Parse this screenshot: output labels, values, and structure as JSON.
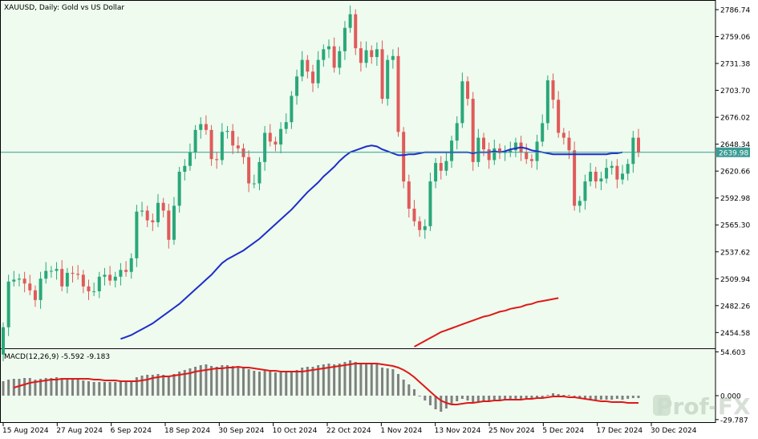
{
  "header": {
    "main_title": "XAUUSD, Daily:  Gold vs US Dollar",
    "macd_label": "MACD(12,26,9) -5.592 -9.183"
  },
  "watermark": {
    "text": "Prof-FX"
  },
  "colors": {
    "background": "#eefbee",
    "bull": "#2aa77a",
    "bear": "#e05a5a",
    "ma_fast": "#1f2dcc",
    "ma_slow": "#e01818",
    "price_line": "#3a9c94",
    "macd_hist": "#808080",
    "macd_signal": "#e01818"
  },
  "chart_data": [
    {
      "type": "candlestick",
      "title": "XAUUSD, Daily:  Gold vs US Dollar",
      "ylim": [
        2440,
        2795
      ],
      "y_ticks": [
        "2786.74",
        "2759.06",
        "2731.38",
        "2703.70",
        "2676.02",
        "2648.34",
        "2620.66",
        "2592.98",
        "2565.30",
        "2537.62",
        "2509.94",
        "2482.26",
        "2454.58"
      ],
      "x_tick_labels": [
        "15 Aug 2024",
        "27 Aug 2024",
        "6 Sep 2024",
        "18 Sep 2024",
        "30 Sep 2024",
        "10 Oct 2024",
        "22 Oct 2024",
        "1 Nov 2024",
        "13 Nov 2024",
        "25 Nov 2024",
        "5 Dec 2024",
        "17 Dec 2024",
        "30 Dec 2024"
      ],
      "current_price": "2639.98",
      "close": [
        2460,
        2507,
        2509,
        2510,
        2505,
        2498,
        2488,
        2510,
        2518,
        2518,
        2520,
        2502,
        2516,
        2515,
        2514,
        2502,
        2497,
        2497,
        2512,
        2514,
        2508,
        2512,
        2519,
        2517,
        2531,
        2579,
        2580,
        2570,
        2568,
        2588,
        2580,
        2550,
        2585,
        2620,
        2626,
        2640,
        2663,
        2669,
        2663,
        2633,
        2632,
        2661,
        2662,
        2647,
        2644,
        2635,
        2608,
        2608,
        2630,
        2660,
        2651,
        2648,
        2664,
        2671,
        2698,
        2718,
        2735,
        2723,
        2711,
        2735,
        2746,
        2749,
        2727,
        2744,
        2768,
        2782,
        2747,
        2732,
        2745,
        2738,
        2746,
        2695,
        2735,
        2739,
        2661,
        2610,
        2582,
        2569,
        2560,
        2564,
        2610,
        2629,
        2621,
        2631,
        2652,
        2670,
        2713,
        2695,
        2630,
        2655,
        2643,
        2632,
        2644,
        2640,
        2640,
        2642,
        2650,
        2640,
        2633,
        2631,
        2651,
        2670,
        2714,
        2694,
        2660,
        2655,
        2642,
        2585,
        2590,
        2610,
        2620,
        2610,
        2613,
        2624,
        2626,
        2612,
        2618,
        2628,
        2655,
        2640
      ],
      "open": [
        2432,
        2460,
        2507,
        2509,
        2510,
        2505,
        2498,
        2488,
        2510,
        2518,
        2518,
        2520,
        2502,
        2516,
        2515,
        2514,
        2502,
        2497,
        2497,
        2512,
        2514,
        2508,
        2512,
        2519,
        2517,
        2531,
        2579,
        2580,
        2570,
        2568,
        2588,
        2580,
        2550,
        2585,
        2620,
        2626,
        2640,
        2663,
        2669,
        2663,
        2633,
        2632,
        2661,
        2662,
        2647,
        2644,
        2635,
        2608,
        2608,
        2630,
        2660,
        2651,
        2648,
        2664,
        2671,
        2698,
        2718,
        2735,
        2723,
        2711,
        2735,
        2746,
        2749,
        2727,
        2744,
        2768,
        2782,
        2747,
        2732,
        2745,
        2738,
        2746,
        2695,
        2735,
        2739,
        2661,
        2610,
        2582,
        2569,
        2560,
        2564,
        2610,
        2629,
        2621,
        2631,
        2652,
        2670,
        2713,
        2695,
        2630,
        2655,
        2643,
        2632,
        2644,
        2640,
        2640,
        2642,
        2650,
        2640,
        2633,
        2631,
        2651,
        2670,
        2714,
        2694,
        2660,
        2655,
        2642,
        2585,
        2590,
        2610,
        2620,
        2610,
        2613,
        2624,
        2626,
        2612,
        2618,
        2628,
        2655
      ],
      "series": [
        {
          "name": "",
          "color": "#1f2dcc",
          "values": [
            null,
            null,
            null,
            null,
            null,
            null,
            null,
            null,
            null,
            null,
            null,
            null,
            null,
            null,
            null,
            null,
            null,
            null,
            null,
            null,
            null,
            null,
            2448,
            2450,
            2452,
            2455,
            2458,
            2461,
            2464,
            2468,
            2472,
            2476,
            2480,
            2484,
            2489,
            2494,
            2499,
            2504,
            2509,
            2514,
            2520,
            2526,
            2530,
            2533,
            2536,
            2539,
            2543,
            2547,
            2551,
            2556,
            2561,
            2566,
            2571,
            2576,
            2581,
            2587,
            2593,
            2599,
            2604,
            2609,
            2615,
            2620,
            2625,
            2631,
            2636,
            2640,
            2642,
            2644,
            2646,
            2647,
            2646,
            2643,
            2641,
            2639,
            2637,
            2637,
            2638,
            2638,
            2639,
            2640,
            2640,
            2640,
            2640,
            2640,
            2640,
            2640,
            2640,
            2640,
            2639,
            2640,
            2640,
            2640,
            2641,
            2640,
            2641,
            2643,
            2644,
            2645,
            2644,
            2642,
            2641,
            2640,
            2639,
            2638,
            2638,
            2638,
            2638,
            2638,
            2638,
            2638,
            2638,
            2638,
            2638,
            2638,
            2639,
            2639,
            2640
          ]
        },
        {
          "name": "",
          "color": "#e01818",
          "values": [
            null,
            null,
            null,
            null,
            null,
            null,
            null,
            null,
            null,
            null,
            null,
            null,
            null,
            null,
            null,
            null,
            null,
            null,
            null,
            null,
            null,
            null,
            null,
            null,
            null,
            null,
            null,
            null,
            null,
            null,
            null,
            null,
            null,
            null,
            null,
            null,
            null,
            null,
            null,
            null,
            null,
            null,
            null,
            null,
            null,
            null,
            null,
            null,
            null,
            null,
            null,
            null,
            null,
            null,
            null,
            null,
            null,
            null,
            null,
            null,
            null,
            null,
            null,
            null,
            null,
            null,
            null,
            null,
            null,
            null,
            null,
            null,
            null,
            null,
            null,
            null,
            null,
            2440,
            2443,
            2446,
            2449,
            2452,
            2455,
            2457,
            2459,
            2461,
            2463,
            2465,
            2467,
            2469,
            2471,
            2472,
            2474,
            2476,
            2477,
            2479,
            2480,
            2481,
            2483,
            2484,
            2486,
            2487,
            2488,
            2489,
            2490
          ]
        }
      ]
    },
    {
      "type": "bar",
      "title": "MACD(12,26,9) -5.592 -9.183",
      "ylim": [
        -32,
        56
      ],
      "y_ticks": [
        "54.603",
        "0.000",
        "-29.787"
      ],
      "values": [
        18,
        20,
        21,
        21,
        22,
        22,
        20,
        21,
        22,
        22,
        23,
        22,
        22,
        21,
        20,
        19,
        18,
        17,
        17,
        17,
        17,
        17,
        18,
        17,
        18,
        23,
        25,
        26,
        26,
        27,
        26,
        24,
        27,
        30,
        32,
        34,
        36,
        38,
        39,
        37,
        36,
        38,
        38,
        37,
        36,
        35,
        33,
        31,
        30,
        31,
        30,
        29,
        29,
        29,
        30,
        32,
        35,
        36,
        36,
        38,
        39,
        40,
        39,
        40,
        42,
        44,
        42,
        41,
        40,
        39,
        39,
        35,
        34,
        33,
        27,
        20,
        14,
        8,
        0,
        -6,
        -12,
        -17,
        -20,
        -16,
        -11,
        -7,
        -4,
        -6,
        -9,
        -8,
        -7,
        -6,
        -5,
        -6,
        -5,
        -5,
        -5,
        -4,
        -5,
        -4,
        -3,
        -2,
        1,
        3,
        2,
        1,
        1,
        -1,
        -3,
        -4,
        -5,
        -5,
        -5,
        -5,
        -5,
        -4,
        -5,
        -4,
        -3,
        -3
      ],
      "series": [
        {
          "name": "",
          "color": "#e01818",
          "values": [
            null,
            null,
            10,
            12,
            14,
            16,
            17,
            18,
            19,
            20,
            20,
            21,
            21,
            21,
            21,
            21,
            21,
            20,
            20,
            19,
            19,
            19,
            18,
            18,
            18,
            18,
            19,
            20,
            22,
            23,
            24,
            24,
            25,
            26,
            27,
            28,
            30,
            31,
            32,
            33,
            34,
            34,
            35,
            35,
            36,
            35,
            35,
            34,
            33,
            32,
            31,
            31,
            30,
            30,
            30,
            30,
            30,
            31,
            32,
            33,
            34,
            35,
            36,
            37,
            38,
            39,
            40,
            40,
            40,
            40,
            40,
            39,
            38,
            37,
            35,
            32,
            28,
            23,
            17,
            11,
            5,
            -1,
            -6,
            -9,
            -11,
            -11,
            -10,
            -9,
            -9,
            -8,
            -7,
            -7,
            -6,
            -6,
            -5,
            -5,
            -5,
            -5,
            -4,
            -4,
            -3,
            -3,
            -2,
            -1,
            -1,
            -1,
            -2,
            -2,
            -3,
            -4,
            -5,
            -6,
            -7,
            -7,
            -8,
            -8,
            -8,
            -9,
            -9,
            -9
          ]
        }
      ]
    }
  ]
}
